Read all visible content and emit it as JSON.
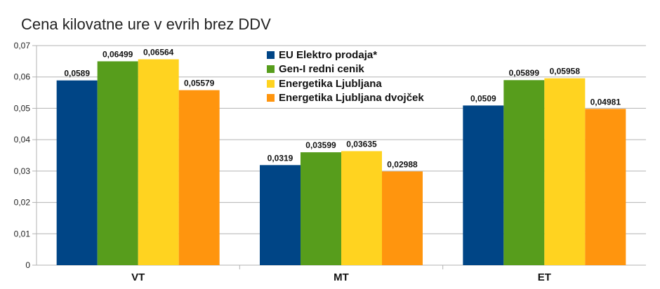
{
  "chart_data": {
    "type": "bar",
    "title": "Cena kilovatne ure v evrih brez DDV",
    "xlabel": "",
    "ylabel": "",
    "ylim": [
      0,
      0.07
    ],
    "yticks": [
      "0",
      "0,01",
      "0,02",
      "0,03",
      "0,04",
      "0,05",
      "0,06",
      "0,07"
    ],
    "categories": [
      "VT",
      "MT",
      "ET"
    ],
    "series": [
      {
        "name": "EU Elektro prodaja*",
        "color": "#004586",
        "values": [
          0.0589,
          0.0319,
          0.0509
        ],
        "labels": [
          "0,0589",
          "0,0319",
          "0,0509"
        ]
      },
      {
        "name": "Gen-I redni cenik",
        "color": "#579d1c",
        "values": [
          0.06499,
          0.03599,
          0.05899
        ],
        "labels": [
          "0,06499",
          "0,03599",
          "0,05899"
        ]
      },
      {
        "name": "Energetika Ljubljana",
        "color": "#ffd320",
        "values": [
          0.06564,
          0.03635,
          0.05958
        ],
        "labels": [
          "0,06564",
          "0,03635",
          "0,05958"
        ]
      },
      {
        "name": "Energetika Ljubljana dvojček",
        "color": "#ff950e",
        "values": [
          0.05579,
          0.02988,
          0.04981
        ],
        "labels": [
          "0,05579",
          "0,02988",
          "0,04981"
        ]
      }
    ],
    "legend_position": "top-center",
    "grid": true
  }
}
